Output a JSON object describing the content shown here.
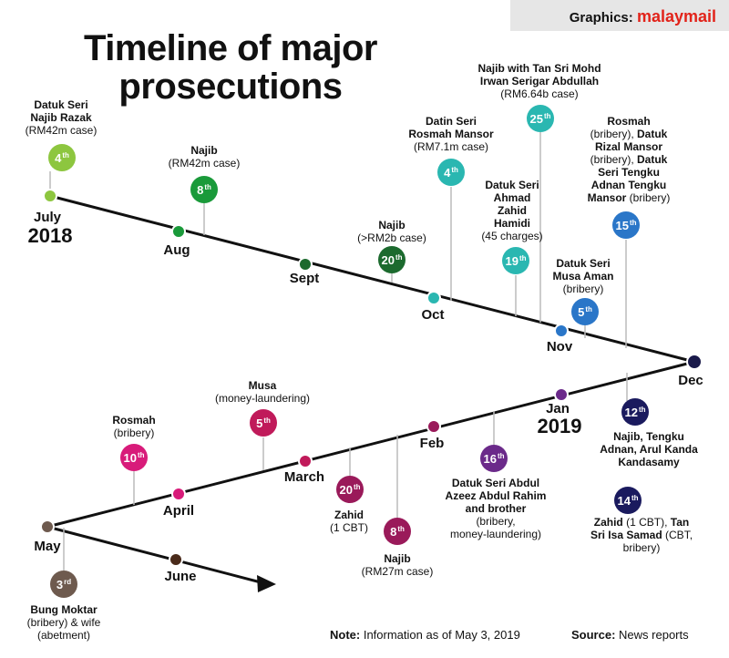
{
  "credit": {
    "label": "Graphics:",
    "brand": "malaymail"
  },
  "title": {
    "line1": "Timeline of major",
    "line2": "prosecutions"
  },
  "years": {
    "start": "2018",
    "end": "2019"
  },
  "months": [
    {
      "id": "july",
      "label": "July",
      "color": "#8dc63f"
    },
    {
      "id": "aug",
      "label": "Aug",
      "color": "#1a9a3a"
    },
    {
      "id": "sept",
      "label": "Sept",
      "color": "#1c6a2e"
    },
    {
      "id": "oct",
      "label": "Oct",
      "color": "#2ab7b1"
    },
    {
      "id": "nov",
      "label": "Nov",
      "color": "#2a76c8"
    },
    {
      "id": "dec",
      "label": "Dec",
      "color": "#1a1a4a"
    },
    {
      "id": "jan",
      "label": "Jan",
      "color": "#6b2a8a"
    },
    {
      "id": "feb",
      "label": "Feb",
      "color": "#9a1a5a"
    },
    {
      "id": "march",
      "label": "March",
      "color": "#c01a5a"
    },
    {
      "id": "april",
      "label": "April",
      "color": "#d81b7a"
    },
    {
      "id": "may",
      "label": "May",
      "color": "#6e5a4e"
    },
    {
      "id": "june",
      "label": "June",
      "color": "#4a2a1a"
    }
  ],
  "events": [
    {
      "id": "jul4",
      "day": "4",
      "suffix": "th",
      "color": "#8dc63f",
      "bold": [
        "Datuk Seri",
        "Najib Razak"
      ],
      "text": [
        "(RM42m case)"
      ]
    },
    {
      "id": "aug8",
      "day": "8",
      "suffix": "th",
      "color": "#1a9a3a",
      "bold": [
        "Najib"
      ],
      "text": [
        "(RM42m case)"
      ]
    },
    {
      "id": "sep20",
      "day": "20",
      "suffix": "th",
      "color": "#1c6a2e",
      "bold": [
        "Najib"
      ],
      "text": [
        "(>RM2b case)"
      ]
    },
    {
      "id": "oct4",
      "day": "4",
      "suffix": "th",
      "color": "#2ab7b1",
      "bold": [
        "Datin Seri",
        "Rosmah Mansor"
      ],
      "text": [
        "(RM7.1m case)"
      ]
    },
    {
      "id": "oct19",
      "day": "19",
      "suffix": "th",
      "color": "#2ab7b1",
      "bold": [
        "Datuk Seri",
        "Ahmad",
        "Zahid",
        "Hamidi"
      ],
      "text": [
        "(45 charges)"
      ]
    },
    {
      "id": "oct25",
      "day": "25",
      "suffix": "th",
      "color": "#2ab7b1",
      "bold": [
        "Najib with Tan Sri Mohd",
        "Irwan Serigar Abdullah"
      ],
      "text": [
        "(RM6.64b case)"
      ]
    },
    {
      "id": "nov5",
      "day": "5",
      "suffix": "th",
      "color": "#2a76c8",
      "bold": [
        "Datuk Seri",
        "Musa Aman"
      ],
      "text": [
        "(bribery)"
      ]
    },
    {
      "id": "nov15",
      "day": "15",
      "suffix": "th",
      "color": "#2a76c8",
      "bold": [],
      "text": [],
      "mixed": [
        {
          "b": "Rosmah"
        },
        {
          "t": "(bribery), ",
          "b": "Datuk"
        },
        {
          "b": "Rizal Mansor"
        },
        {
          "t": "(bribery), ",
          "b": "Datuk"
        },
        {
          "b": "Seri Tengku"
        },
        {
          "b": "Adnan Tengku"
        },
        {
          "b": "Mansor",
          "t": " (bribery)"
        }
      ]
    },
    {
      "id": "dec12",
      "day": "12",
      "suffix": "th",
      "color": "#1a1a5e",
      "bold": [
        "Najib, Tengku",
        "Adnan, Arul Kanda",
        "Kandasamy"
      ],
      "text": []
    },
    {
      "id": "dec14",
      "day": "14",
      "suffix": "th",
      "color": "#1a1a5e",
      "bold": [],
      "text": [],
      "mixed": [
        {
          "b": "Zahid",
          "t": " (1 CBT), ",
          "b2": "Tan"
        },
        {
          "b": "Sri Isa Samad",
          "t": " (CBT,"
        },
        {
          "t": "bribery)"
        }
      ]
    },
    {
      "id": "jan16",
      "day": "16",
      "suffix": "th",
      "color": "#6b2a8a",
      "bold": [
        "Datuk Seri Abdul",
        "Azeez Abdul Rahim",
        "and brother"
      ],
      "text": [
        "(bribery,",
        "money-laundering)"
      ]
    },
    {
      "id": "feb8",
      "day": "8",
      "suffix": "th",
      "color": "#9a1a5a",
      "bold": [
        "Najib"
      ],
      "text": [
        "(RM27m case)"
      ]
    },
    {
      "id": "feb20",
      "day": "20",
      "suffix": "th",
      "color": "#9a1a5a",
      "bold": [
        "Zahid"
      ],
      "text": [
        "(1 CBT)"
      ]
    },
    {
      "id": "mar5",
      "day": "5",
      "suffix": "th",
      "color": "#c01a5a",
      "bold": [
        "Musa"
      ],
      "text": [
        "(money-laundering)"
      ]
    },
    {
      "id": "apr10",
      "day": "10",
      "suffix": "th",
      "color": "#d81b7a",
      "bold": [
        "Rosmah"
      ],
      "text": [
        "(bribery)"
      ]
    },
    {
      "id": "may3",
      "day": "3",
      "suffix": "rd",
      "color": "#6e5a4e",
      "bold": [
        "Bung Moktar"
      ],
      "text": [
        "(bribery) & wife",
        "(abetment)"
      ]
    }
  ],
  "footer": {
    "note_label": "Note:",
    "note_text": "Information as of May 3, 2019",
    "source_label": "Source:",
    "source_text": "News reports"
  },
  "colors": {
    "line": "#111111",
    "connector": "#bbbbbb"
  }
}
